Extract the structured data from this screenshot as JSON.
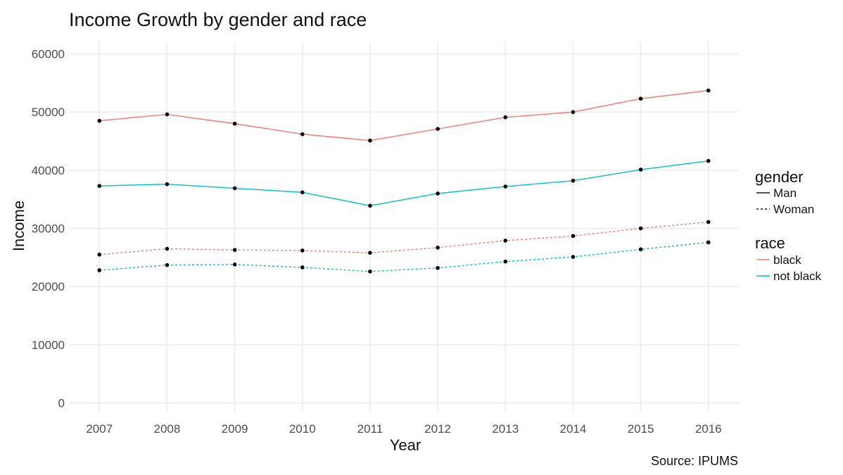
{
  "chart_data": {
    "type": "line",
    "title": "Income Growth by gender and race",
    "xlabel": "Year",
    "ylabel": "Income",
    "caption": "Source: IPUMS",
    "x": [
      2007,
      2008,
      2009,
      2010,
      2011,
      2012,
      2013,
      2014,
      2015,
      2016
    ],
    "x_ticks": [
      "2007",
      "2008",
      "2009",
      "2010",
      "2011",
      "2012",
      "2013",
      "2014",
      "2015",
      "2016"
    ],
    "xlim": [
      2006.55,
      2016.45
    ],
    "ylim": [
      -1500,
      62000
    ],
    "y_ticks": [
      0,
      10000,
      20000,
      30000,
      40000,
      50000,
      60000
    ],
    "y_tick_labels": [
      "0",
      "10000",
      "20000",
      "30000",
      "40000",
      "50000",
      "60000"
    ],
    "grid": true,
    "points": true,
    "legend_position": "right",
    "legend": {
      "gender": {
        "title": "gender",
        "items": [
          {
            "label": "Man",
            "linetype": "solid"
          },
          {
            "label": "Woman",
            "linetype": "dashed"
          }
        ]
      },
      "race": {
        "title": "race",
        "items": [
          {
            "label": "black",
            "color": "#F8766D"
          },
          {
            "label": "not black",
            "color": "#00BFC4"
          }
        ]
      }
    },
    "series": [
      {
        "gender": "Man",
        "race": "black",
        "color": "#F8766D",
        "linetype": "solid",
        "values": [
          48500,
          49600,
          48000,
          46200,
          45100,
          47100,
          49100,
          50000,
          52300,
          53700
        ]
      },
      {
        "gender": "Man",
        "race": "not black",
        "color": "#00BFC4",
        "linetype": "solid",
        "values": [
          37300,
          37600,
          36900,
          36200,
          33900,
          36000,
          37200,
          38200,
          40100,
          41600
        ]
      },
      {
        "gender": "Woman",
        "race": "black",
        "color": "#F8766D",
        "linetype": "dashed",
        "values": [
          25500,
          26500,
          26300,
          26200,
          25800,
          26700,
          27900,
          28700,
          30000,
          31100
        ]
      },
      {
        "gender": "Woman",
        "race": "not black",
        "color": "#00BFC4",
        "linetype": "dashed",
        "values": [
          22800,
          23700,
          23800,
          23300,
          22600,
          23200,
          24300,
          25100,
          26400,
          27600
        ]
      }
    ]
  }
}
